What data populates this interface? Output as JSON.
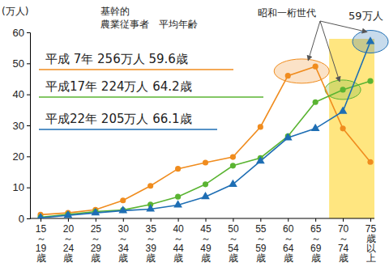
{
  "chart_data": {
    "type": "line",
    "y_label": "(万人)",
    "annotations": [
      "基幹的",
      "農業従事者　平均年齢",
      "昭和一桁世代",
      "59万人"
    ],
    "categories": [
      "15～19歳",
      "20～24歳",
      "25～29歳",
      "30～34歳",
      "35～39歳",
      "40～44歳",
      "45～49歳",
      "50～54歳",
      "55～59歳",
      "60～64歳",
      "65～69歳",
      "70～74歳",
      "75歳以上"
    ],
    "series": [
      {
        "name": "平成 7年 256万人 59.6歳",
        "color": "#f08c1e",
        "marker": "circle",
        "values": [
          1.2,
          1.8,
          2.8,
          5.8,
          10.5,
          16,
          18,
          19.8,
          29.5,
          46,
          49,
          29,
          18.2
        ]
      },
      {
        "name": "平成17年 224万人 64.2歳",
        "color": "#5ab432",
        "marker": "circle",
        "values": [
          0.4,
          1.3,
          2.2,
          2.7,
          4.5,
          7,
          11,
          17,
          19.5,
          26.5,
          37.5,
          41.5,
          44.3
        ]
      },
      {
        "name": "平成22年 205万人 66.1歳",
        "color": "#1e6eb4",
        "marker": "triangle",
        "values": [
          0.2,
          1.0,
          1.8,
          2.5,
          3.0,
          4.3,
          7,
          11,
          18.5,
          26,
          29,
          34.5,
          57
        ]
      }
    ],
    "ylim": [
      0,
      60
    ],
    "yticks": [
      0,
      10,
      20,
      30,
      40,
      50,
      60
    ],
    "grid": false
  }
}
